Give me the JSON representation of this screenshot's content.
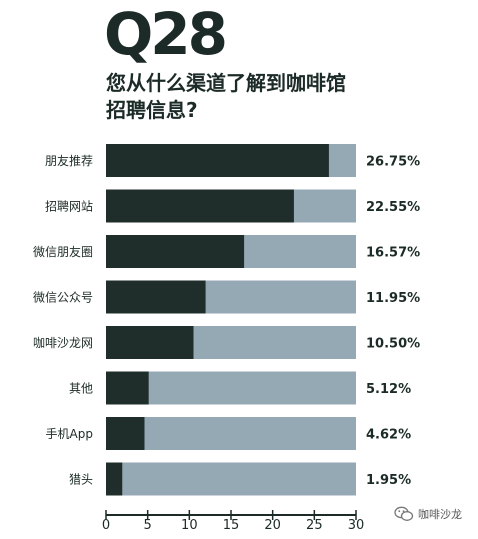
{
  "header": {
    "question_number": "Q28",
    "question_line1": "您从什么渠道了解到咖啡馆",
    "question_line2": "招聘信息?"
  },
  "colors": {
    "bar_value": "#1f2e2a",
    "bar_track": "#95a9b4",
    "text": "#1c2b27"
  },
  "chart_data": {
    "type": "bar",
    "orientation": "horizontal",
    "stacked_on_track": true,
    "categories": [
      "朋友推荐",
      "招聘网站",
      "微信朋友圈",
      "微信公众号",
      "咖啡沙龙网",
      "其他",
      "手机App",
      "猎头"
    ],
    "values": [
      26.75,
      22.55,
      16.57,
      11.95,
      10.5,
      5.12,
      4.62,
      1.95
    ],
    "value_labels": [
      "26.75%",
      "22.55%",
      "16.57%",
      "11.95%",
      "10.50%",
      "5.12%",
      "4.62%",
      "1.95%"
    ],
    "xlim": [
      0,
      30
    ],
    "x_ticks": [
      0,
      5,
      10,
      15,
      20,
      25,
      30
    ],
    "grid": false,
    "title": "",
    "xlabel": "",
    "ylabel": ""
  },
  "watermark": {
    "icon": "wechat-icon",
    "text": "咖啡沙龙"
  }
}
